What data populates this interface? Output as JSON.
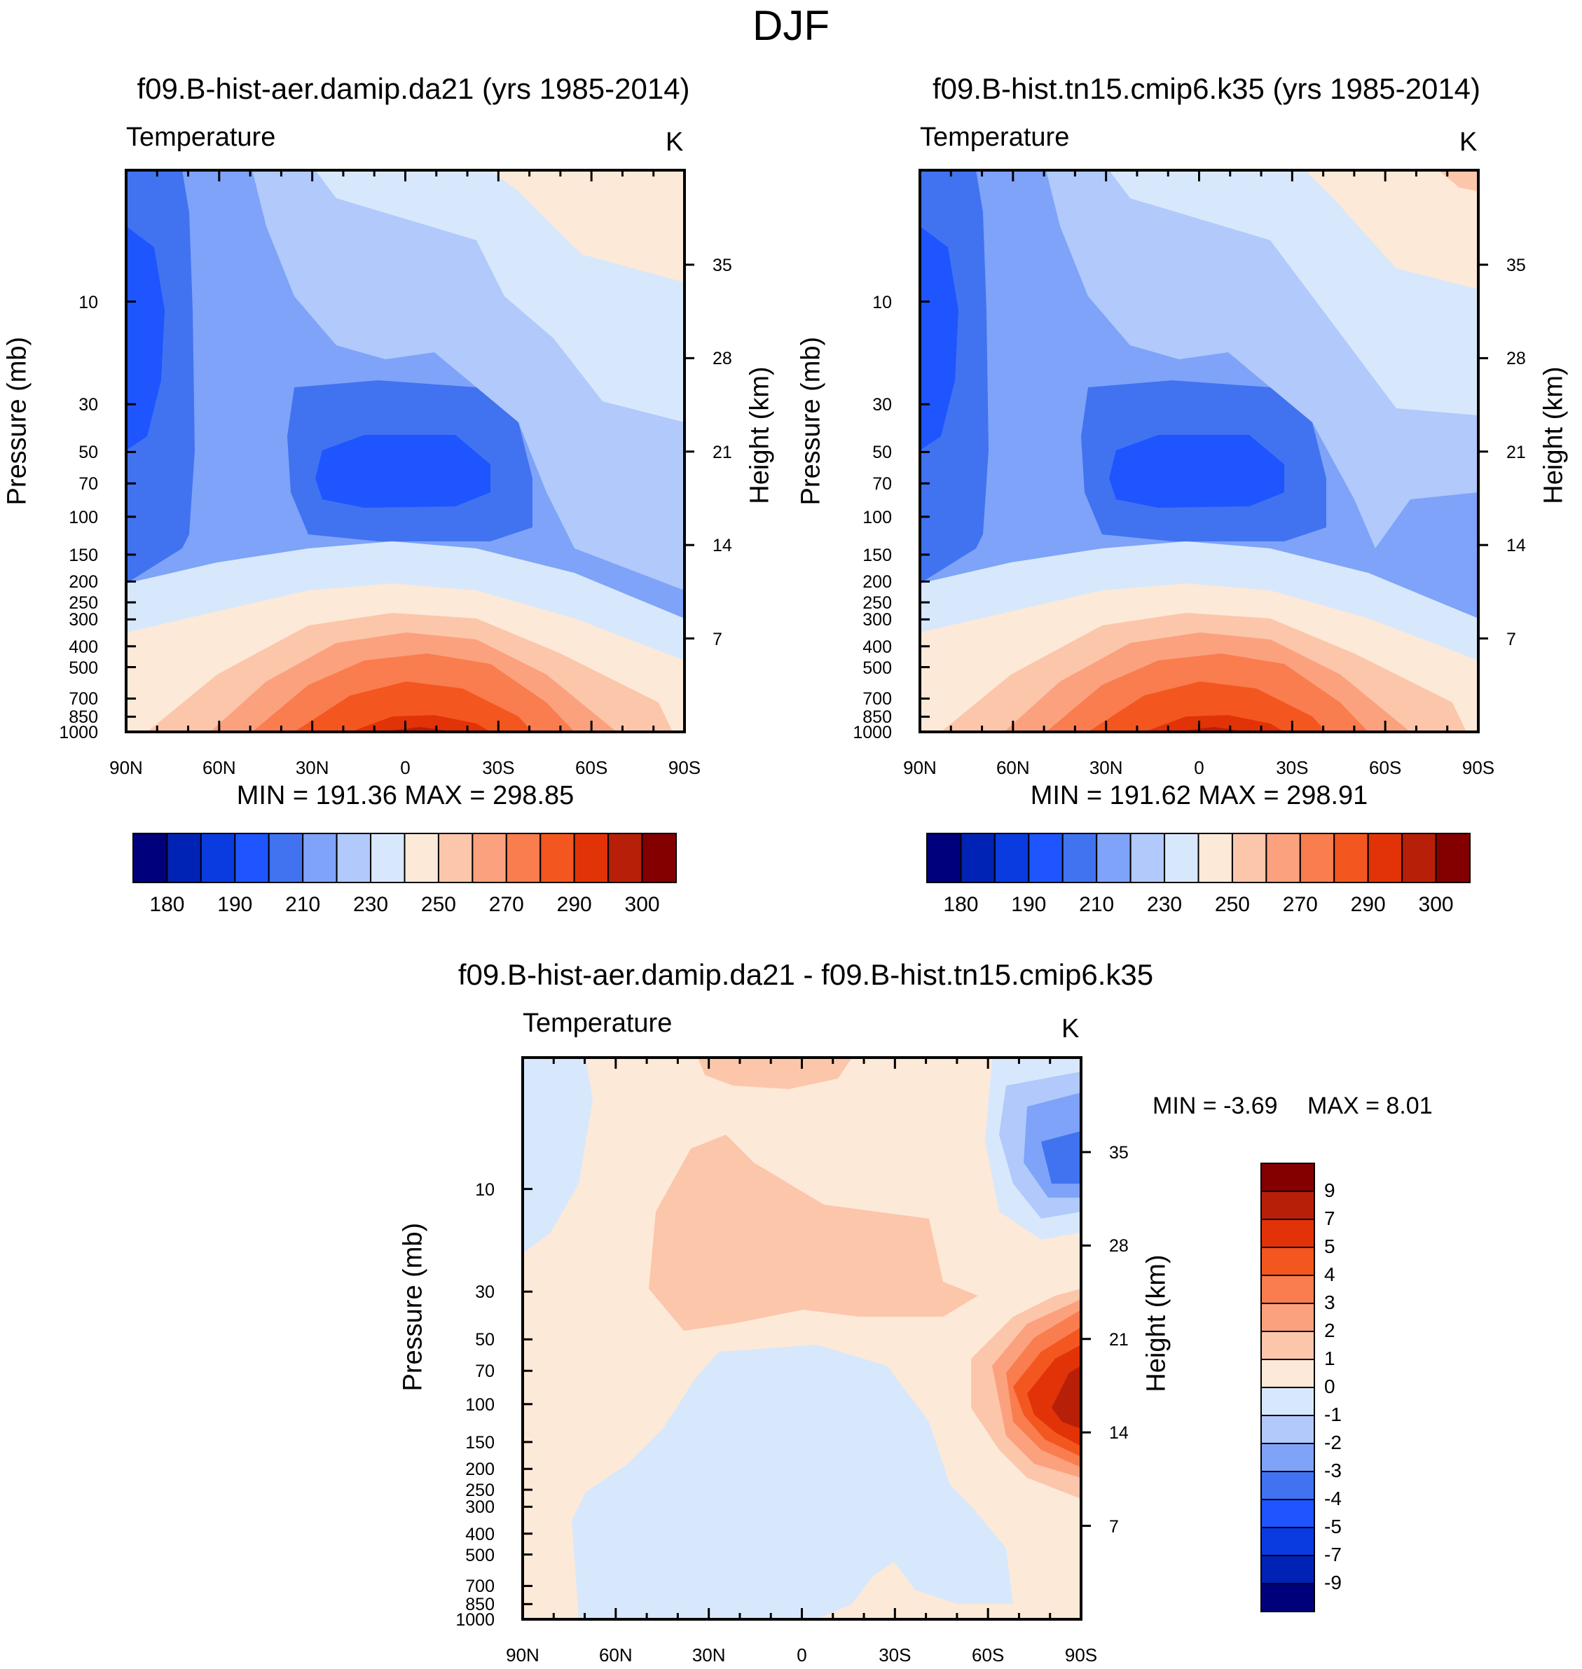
{
  "figure_title": "DJF",
  "colors": {
    "temp_palette": [
      "#00007d",
      "#0022b5",
      "#0a3be0",
      "#1e55ff",
      "#4173f0",
      "#7ea3f8",
      "#b1c9fb",
      "#d8e8fc",
      "#fde9d8",
      "#fcc6ab",
      "#fba17e",
      "#f97d4e",
      "#f4561f",
      "#e13307",
      "#b81f08",
      "#840000"
    ],
    "diff_palette": [
      "#00007d",
      "#0022b5",
      "#0a3be0",
      "#1e55ff",
      "#4173f0",
      "#7ea3f8",
      "#b1c9fb",
      "#d8e8fc",
      "#fde9d8",
      "#fcc6ab",
      "#fba17e",
      "#f97d4e",
      "#f4561f",
      "#e13307",
      "#b81f08",
      "#840000"
    ]
  },
  "panels": [
    {
      "title": "f09.B-hist-aer.damip.da21 (yrs 1985-2014)",
      "left_label": "Temperature",
      "units": "K",
      "ylabel_left": "Pressure (mb)",
      "ylabel_right": "Height (km)",
      "minmax": "MIN = 191.36  MAX = 298.85"
    },
    {
      "title": "f09.B-hist.tn15.cmip6.k35 (yrs 1985-2014)",
      "left_label": "Temperature",
      "units": "K",
      "ylabel_left": "Pressure (mb)",
      "ylabel_right": "Height (km)",
      "minmax": "MIN = 191.62  MAX = 298.91"
    },
    {
      "title": "f09.B-hist-aer.damip.da21 - f09.B-hist.tn15.cmip6.k35",
      "left_label": "Temperature",
      "units": "K",
      "ylabel_left": "Pressure (mb)",
      "ylabel_right": "Height (km)",
      "minmax_min": "MIN =   -3.69",
      "minmax_max": "MAX =    8.01"
    }
  ],
  "chart_data": [
    {
      "type": "heatmap",
      "title": "f09.B-hist-aer.damip.da21 (yrs 1985-2014)",
      "xlabel": "",
      "ylabel": "Pressure (mb)",
      "y2label": "Height (km)",
      "x_ticks": [
        "90N",
        "60N",
        "30N",
        "0",
        "30S",
        "60S",
        "90S"
      ],
      "y_ticks": [
        "10",
        "30",
        "50",
        "70",
        "100",
        "150",
        "200",
        "250",
        "300",
        "400",
        "500",
        "700",
        "850",
        "1000"
      ],
      "y2_ticks": [
        "35",
        "28",
        "21",
        "14",
        "7"
      ],
      "min": 191.36,
      "max": 298.85,
      "colorbar_labels": [
        "180",
        "190",
        "210",
        "230",
        "250",
        "270",
        "290",
        "300"
      ],
      "levels": [
        180,
        185,
        190,
        200,
        210,
        220,
        230,
        240,
        250,
        260,
        270,
        280,
        290,
        295,
        300
      ]
    },
    {
      "type": "heatmap",
      "title": "f09.B-hist.tn15.cmip6.k35 (yrs 1985-2014)",
      "xlabel": "",
      "ylabel": "Pressure (mb)",
      "y2label": "Height (km)",
      "x_ticks": [
        "90N",
        "60N",
        "30N",
        "0",
        "30S",
        "60S",
        "90S"
      ],
      "y_ticks": [
        "10",
        "30",
        "50",
        "70",
        "100",
        "150",
        "200",
        "250",
        "300",
        "400",
        "500",
        "700",
        "850",
        "1000"
      ],
      "y2_ticks": [
        "35",
        "28",
        "21",
        "14",
        "7"
      ],
      "min": 191.62,
      "max": 298.91,
      "colorbar_labels": [
        "180",
        "190",
        "210",
        "230",
        "250",
        "270",
        "290",
        "300"
      ],
      "levels": [
        180,
        185,
        190,
        200,
        210,
        220,
        230,
        240,
        250,
        260,
        270,
        280,
        290,
        295,
        300
      ]
    },
    {
      "type": "heatmap",
      "title": "f09.B-hist-aer.damip.da21 - f09.B-hist.tn15.cmip6.k35",
      "xlabel": "",
      "ylabel": "Pressure (mb)",
      "y2label": "Height (km)",
      "x_ticks": [
        "90N",
        "60N",
        "30N",
        "0",
        "30S",
        "60S",
        "90S"
      ],
      "y_ticks": [
        "10",
        "30",
        "50",
        "70",
        "100",
        "150",
        "200",
        "250",
        "300",
        "400",
        "500",
        "700",
        "850",
        "1000"
      ],
      "y2_ticks": [
        "35",
        "28",
        "21",
        "14",
        "7"
      ],
      "min": -3.69,
      "max": 8.01,
      "colorbar_labels": [
        "9",
        "7",
        "5",
        "4",
        "3",
        "2",
        "1",
        "0",
        "-1",
        "-2",
        "-3",
        "-4",
        "-5",
        "-7",
        "-9"
      ],
      "levels": [
        -9,
        -7,
        -5,
        -4,
        -3,
        -2,
        -1,
        0,
        1,
        2,
        3,
        4,
        5,
        7,
        9
      ]
    }
  ]
}
